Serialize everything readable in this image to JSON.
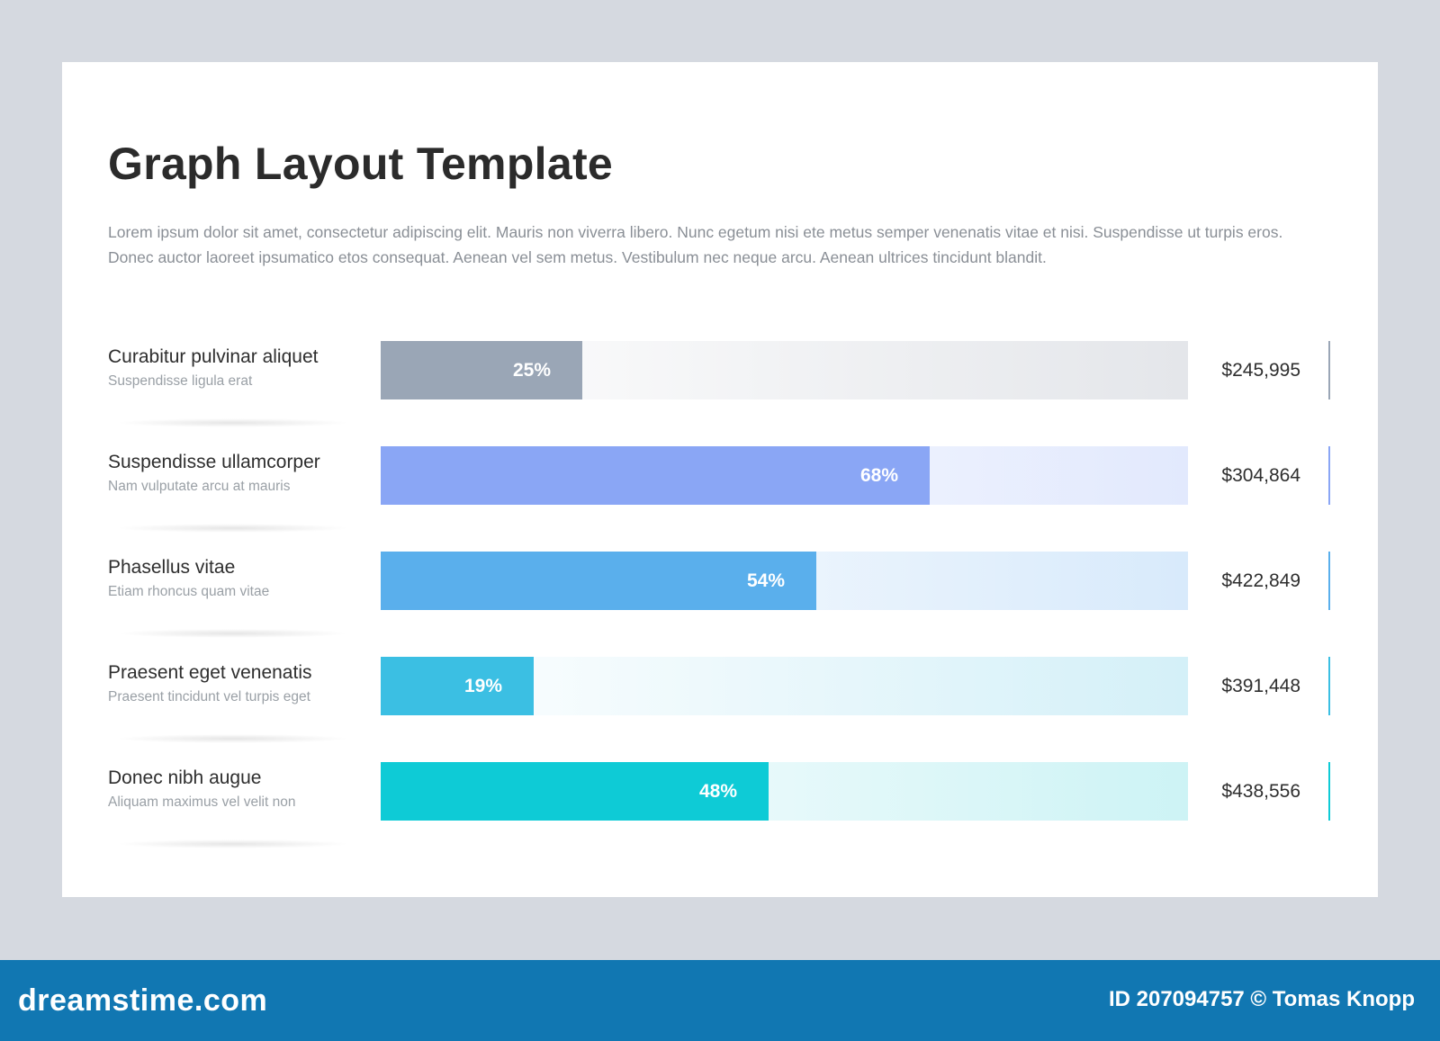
{
  "title": "Graph Layout Template",
  "description": "Lorem ipsum dolor sit amet, consectetur adipiscing elit. Mauris non viverra libero. Nunc egetum nisi ete metus semper venenatis vitae et nisi. Suspendisse ut turpis eros. Donec auctor laoreet ipsumatico etos consequat. Aenean vel sem metus. Vestibulum nec neque arcu. Aenean ultrices tincidunt blandit.",
  "chart_data": {
    "type": "bar",
    "orientation": "horizontal",
    "xlim": [
      0,
      100
    ],
    "categories": [
      "Curabitur pulvinar aliquet",
      "Suspendisse ullamcorper",
      "Phasellus vitae",
      "Praesent eget venenatis",
      "Donec nibh augue"
    ],
    "subtitles": [
      "Suspendisse ligula erat",
      "Nam vulputate arcu at mauris",
      "Etiam rhoncus quam vitae",
      "Praesent tincidunt vel turpis eget",
      "Aliquam maximus vel velit non"
    ],
    "values": [
      25,
      68,
      54,
      19,
      48
    ],
    "value_labels": [
      "25%",
      "68%",
      "54%",
      "19%",
      "48%"
    ],
    "amounts": [
      "$245,995",
      "$304,864",
      "$422,849",
      "$391,448",
      "$438,556"
    ],
    "colors": [
      "#9aa6b6",
      "#8aa6f5",
      "#5aafec",
      "#3bbfe3",
      "#0ecbd6"
    ],
    "track_colors": [
      "#e4e6ea",
      "#e2e9fd",
      "#d8eafb",
      "#d4f0f8",
      "#cdf3f5"
    ]
  },
  "footer": {
    "brand": "dreamstime.com",
    "credit": "ID 207094757 © Tomas Knopp"
  }
}
